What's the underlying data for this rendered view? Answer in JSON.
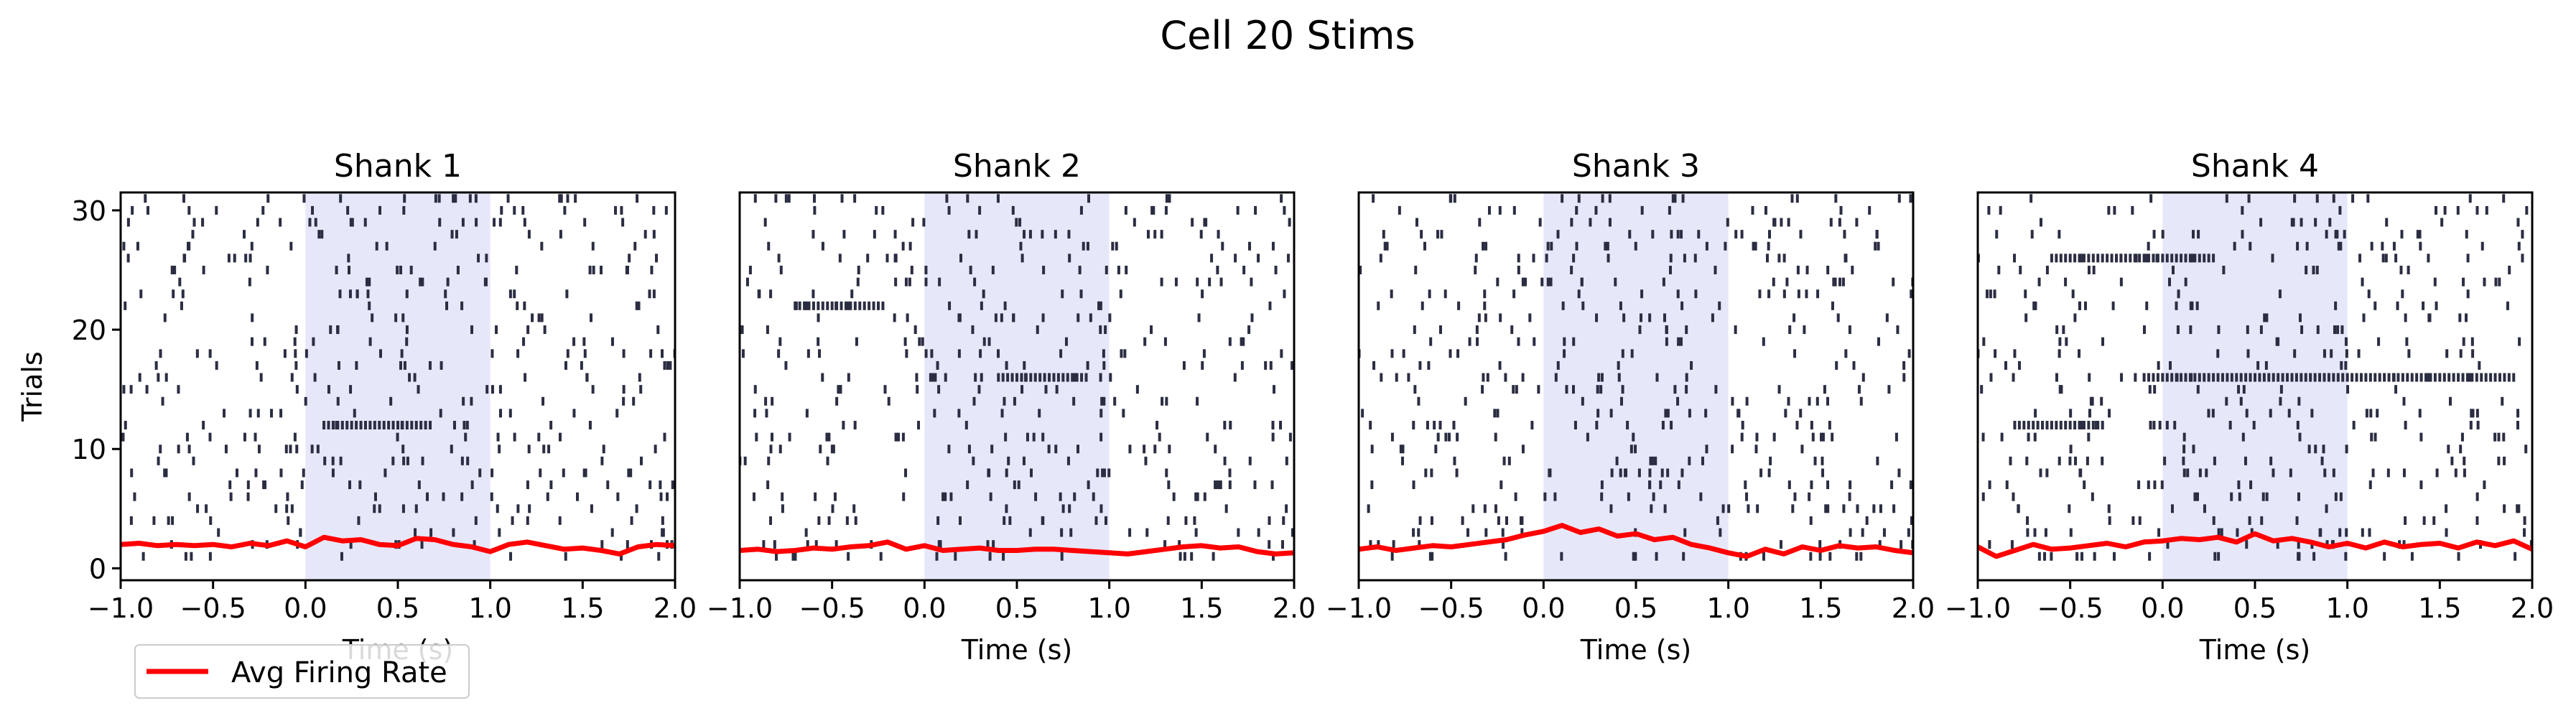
{
  "figure": {
    "suptitle": "Cell 20 Stims"
  },
  "legend": {
    "label": "Avg Firing Rate",
    "color": "#ff0000",
    "placement": "lower-left"
  },
  "style": {
    "spike_color": "#2b2d42",
    "stim_shade_color": "#e6e6fa",
    "rate_color": "#ff0000"
  },
  "chart_data": [
    {
      "type": "raster",
      "title": "Shank 1",
      "xlabel": "Time (s)",
      "ylabel": "Trials",
      "xlim": [
        -1.0,
        2.0
      ],
      "ylim": [
        -1,
        31.5
      ],
      "xticks": [
        "−1.0",
        "−0.5",
        "0.0",
        "0.5",
        "1.0",
        "1.5",
        "2.0"
      ],
      "yticks": [
        "0",
        "10",
        "20",
        "30"
      ],
      "stim_window": [
        0.0,
        1.0
      ],
      "trials": 31,
      "spike_density": 9,
      "burst_trials": [
        {
          "trial": 12,
          "start": 0.1,
          "end": 0.7
        }
      ],
      "avg_firing_rate": {
        "x": [
          -1.0,
          -0.9,
          -0.8,
          -0.7,
          -0.6,
          -0.5,
          -0.4,
          -0.3,
          -0.2,
          -0.1,
          0.0,
          0.1,
          0.2,
          0.3,
          0.4,
          0.5,
          0.6,
          0.7,
          0.8,
          0.9,
          1.0,
          1.1,
          1.2,
          1.3,
          1.4,
          1.5,
          1.6,
          1.7,
          1.8,
          1.9,
          2.0
        ],
        "y": [
          2.0,
          2.1,
          1.9,
          2.0,
          1.9,
          2.0,
          1.8,
          2.1,
          1.9,
          2.3,
          1.8,
          2.6,
          2.3,
          2.4,
          2.0,
          1.9,
          2.5,
          2.4,
          2.0,
          1.8,
          1.4,
          2.0,
          2.2,
          1.9,
          1.6,
          1.7,
          1.5,
          1.2,
          1.8,
          2.0,
          1.9
        ]
      }
    },
    {
      "type": "raster",
      "title": "Shank 2",
      "xlabel": "Time (s)",
      "xlim": [
        -1.0,
        2.0
      ],
      "ylim": [
        -1,
        31.5
      ],
      "xticks": [
        "−1.0",
        "−0.5",
        "0.0",
        "0.5",
        "1.0",
        "1.5",
        "2.0"
      ],
      "stim_window": [
        0.0,
        1.0
      ],
      "trials": 31,
      "spike_density": 9,
      "burst_trials": [
        {
          "trial": 16,
          "start": 0.4,
          "end": 0.9
        },
        {
          "trial": 22,
          "start": -0.7,
          "end": -0.2
        }
      ],
      "avg_firing_rate": {
        "x": [
          -1.0,
          -0.9,
          -0.8,
          -0.7,
          -0.6,
          -0.5,
          -0.4,
          -0.3,
          -0.2,
          -0.1,
          0.0,
          0.1,
          0.2,
          0.3,
          0.4,
          0.5,
          0.6,
          0.7,
          0.8,
          0.9,
          1.0,
          1.1,
          1.2,
          1.3,
          1.4,
          1.5,
          1.6,
          1.7,
          1.8,
          1.9,
          2.0
        ],
        "y": [
          1.5,
          1.6,
          1.4,
          1.5,
          1.7,
          1.6,
          1.8,
          1.9,
          2.2,
          1.6,
          1.9,
          1.5,
          1.6,
          1.7,
          1.5,
          1.5,
          1.6,
          1.6,
          1.5,
          1.4,
          1.3,
          1.2,
          1.4,
          1.6,
          1.8,
          1.9,
          1.7,
          1.8,
          1.4,
          1.2,
          1.3
        ]
      }
    },
    {
      "type": "raster",
      "title": "Shank 3",
      "xlabel": "Time (s)",
      "xlim": [
        -1.0,
        2.0
      ],
      "ylim": [
        -1,
        31.5
      ],
      "xticks": [
        "−1.0",
        "−0.5",
        "0.0",
        "0.5",
        "1.0",
        "1.5",
        "2.0"
      ],
      "stim_window": [
        0.0,
        1.0
      ],
      "trials": 31,
      "spike_density": 10,
      "burst_trials": [],
      "avg_firing_rate": {
        "x": [
          -1.0,
          -0.9,
          -0.8,
          -0.7,
          -0.6,
          -0.5,
          -0.4,
          -0.3,
          -0.2,
          -0.1,
          0.0,
          0.1,
          0.2,
          0.3,
          0.4,
          0.5,
          0.6,
          0.7,
          0.8,
          0.9,
          1.0,
          1.1,
          1.2,
          1.3,
          1.4,
          1.5,
          1.6,
          1.7,
          1.8,
          1.9,
          2.0
        ],
        "y": [
          1.6,
          1.8,
          1.5,
          1.7,
          1.9,
          1.8,
          2.0,
          2.2,
          2.4,
          2.8,
          3.1,
          3.6,
          3.0,
          3.3,
          2.7,
          2.9,
          2.4,
          2.6,
          2.0,
          1.7,
          1.3,
          1.0,
          1.6,
          1.2,
          1.8,
          1.5,
          1.9,
          1.7,
          1.8,
          1.5,
          1.3
        ]
      }
    },
    {
      "type": "raster",
      "title": "Shank 4",
      "xlabel": "Time (s)",
      "xlim": [
        -1.0,
        2.0
      ],
      "ylim": [
        -1,
        31.5
      ],
      "xticks": [
        "−1.0",
        "−0.5",
        "0.0",
        "0.5",
        "1.0",
        "1.5",
        "2.0"
      ],
      "stim_window": [
        0.0,
        1.0
      ],
      "trials": 31,
      "spike_density": 9,
      "burst_trials": [
        {
          "trial": 16,
          "start": -0.1,
          "end": 1.9
        },
        {
          "trial": 26,
          "start": -0.6,
          "end": 0.3
        },
        {
          "trial": 12,
          "start": -0.8,
          "end": -0.3
        }
      ],
      "avg_firing_rate": {
        "x": [
          -1.0,
          -0.9,
          -0.8,
          -0.7,
          -0.6,
          -0.5,
          -0.4,
          -0.3,
          -0.2,
          -0.1,
          0.0,
          0.1,
          0.2,
          0.3,
          0.4,
          0.5,
          0.6,
          0.7,
          0.8,
          0.9,
          1.0,
          1.1,
          1.2,
          1.3,
          1.4,
          1.5,
          1.6,
          1.7,
          1.8,
          1.9,
          2.0
        ],
        "y": [
          1.8,
          1.0,
          1.5,
          2.0,
          1.6,
          1.7,
          1.9,
          2.1,
          1.8,
          2.2,
          2.3,
          2.5,
          2.4,
          2.6,
          2.2,
          2.9,
          2.3,
          2.5,
          2.2,
          1.8,
          2.1,
          1.7,
          2.2,
          1.8,
          2.0,
          2.1,
          1.7,
          2.2,
          1.9,
          2.3,
          1.6
        ]
      }
    }
  ]
}
